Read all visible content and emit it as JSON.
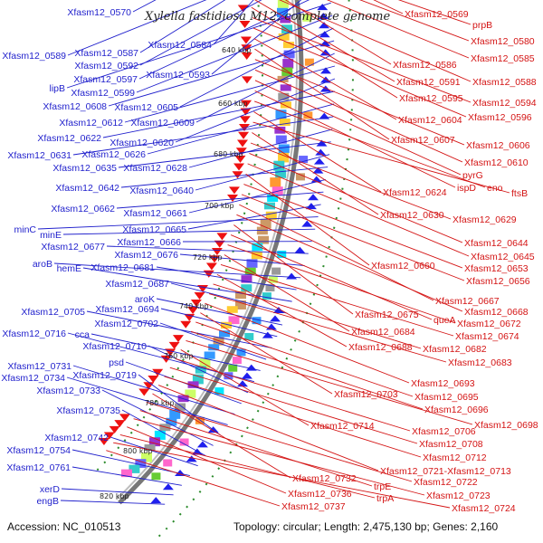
{
  "title": "Xylella fastidiosa M12, complete genome",
  "accession": "Accession: NC_010513",
  "topology": "Topology: circular; Length: 2,475,130 bp; Genes: 2,160",
  "colors": {
    "left_labels": "#1f1fcc",
    "right_labels": "#d41414",
    "axis": "#777777",
    "tick": "#2a8a2a"
  },
  "kbp_marks": [
    "640 kbp",
    "660 kbp",
    "680 kbp",
    "700 kbp",
    "720 kbp",
    "740 kbp",
    "760 kbp",
    "780 kbp",
    "800 kbp",
    "820 kbp"
  ],
  "left_labels": [
    "Xfasm12_0570",
    "Xfasm12_0584",
    "Xfasm12_0587",
    "Xfasm12_0589",
    "Xfasm12_0592",
    "Xfasm12_0593",
    "Xfasm12_0597",
    "lipB",
    "Xfasm12_0599",
    "Xfasm12_0605",
    "Xfasm12_0608",
    "Xfasm12_0609",
    "Xfasm12_0612",
    "Xfasm12_0620",
    "Xfasm12_0622",
    "Xfasm12_0626",
    "Xfasm12_0631",
    "Xfasm12_0628",
    "Xfasm12_0635",
    "Xfasm12_0640",
    "Xfasm12_0642",
    "Xfasm12_0661",
    "Xfasm12_0662",
    "Xfasm12_0665",
    "minC",
    "minE",
    "Xfasm12_0666",
    "Xfasm12_0677",
    "Xfasm12_0676",
    "aroB",
    "Xfasm12_0681",
    "hemE",
    "Xfasm12_0687",
    "aroK",
    "Xfasm12_0694",
    "Xfasm12_0705",
    "Xfasm12_0702",
    "cca",
    "Xfasm12_0716",
    "Xfasm12_0710",
    "psd",
    "Xfasm12_0731",
    "Xfasm12_0734",
    "Xfasm12_0719",
    "Xfasm12_0733",
    "Xfasm12_0735",
    "Xfasm12_0742",
    "Xfasm12_0754",
    "Xfasm12_0761",
    "xerD",
    "engB"
  ],
  "right_labels": [
    "Xfasm12_0569",
    "prpB",
    "Xfasm12_0580",
    "Xfasm12_0585",
    "Xfasm12_0586",
    "Xfasm12_0588",
    "Xfasm12_0591",
    "Xfasm12_0595",
    "Xfasm12_0594",
    "Xfasm12_0596",
    "Xfasm12_0604",
    "Xfasm12_0607",
    "Xfasm12_0606",
    "Xfasm12_0610",
    "pyrG",
    "ispD",
    "eno",
    "Xfasm12_0624",
    "ftsB",
    "Xfasm12_0630",
    "Xfasm12_0629",
    "Xfasm12_0644",
    "Xfasm12_0645",
    "Xfasm12_0660",
    "Xfasm12_0653",
    "Xfasm12_0656",
    "Xfasm12_0667",
    "Xfasm12_0668",
    "Xfasm12_0675",
    "queA",
    "Xfasm12_0672",
    "Xfasm12_0684",
    "Xfasm12_0674",
    "Xfasm12_0688",
    "Xfasm12_0682",
    "Xfasm12_0683",
    "Xfasm12_0693",
    "Xfasm12_0703",
    "Xfasm12_0695",
    "Xfasm12_0696",
    "Xfasm12_0698",
    "Xfasm12_0714",
    "Xfasm12_0706",
    "Xfasm12_0708",
    "Xfasm12_0712",
    "Xfasm12_0721-Xfasm12_0713",
    "Xfasm12_0732",
    "Xfasm12_0722",
    "trpE",
    "Xfasm12_0723",
    "Xfasm12_0736",
    "trpA",
    "Xfasm12_0724",
    "Xfasm12_0737"
  ]
}
